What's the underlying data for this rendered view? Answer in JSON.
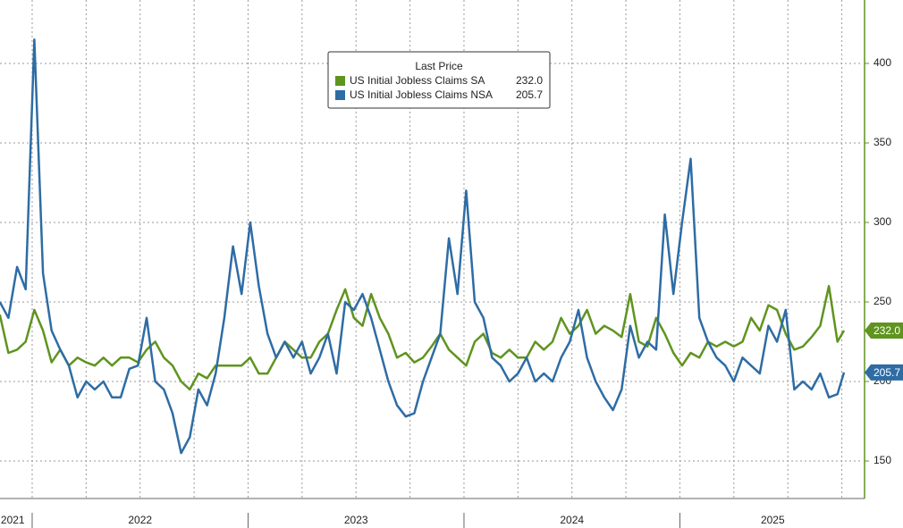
{
  "chart_data": {
    "type": "line",
    "legend_title": "Last Price",
    "legend_position": "top-center",
    "x": [
      2021.85,
      2021.89,
      2021.93,
      2021.97,
      2022.01,
      2022.05,
      2022.09,
      2022.13,
      2022.17,
      2022.21,
      2022.25,
      2022.29,
      2022.33,
      2022.37,
      2022.41,
      2022.45,
      2022.49,
      2022.53,
      2022.57,
      2022.61,
      2022.65,
      2022.69,
      2022.73,
      2022.77,
      2022.81,
      2022.85,
      2022.89,
      2022.93,
      2022.97,
      2023.01,
      2023.05,
      2023.09,
      2023.13,
      2023.17,
      2023.21,
      2023.25,
      2023.29,
      2023.33,
      2023.37,
      2023.41,
      2023.45,
      2023.49,
      2023.53,
      2023.57,
      2023.61,
      2023.65,
      2023.69,
      2023.73,
      2023.77,
      2023.81,
      2023.85,
      2023.89,
      2023.93,
      2023.97,
      2024.01,
      2024.05,
      2024.09,
      2024.13,
      2024.17,
      2024.21,
      2024.25,
      2024.29,
      2024.33,
      2024.37,
      2024.41,
      2024.45,
      2024.49,
      2024.53,
      2024.57,
      2024.61,
      2024.65,
      2024.69,
      2024.73,
      2024.77,
      2024.81,
      2024.85,
      2024.89,
      2024.93,
      2024.97,
      2025.01,
      2025.05,
      2025.09,
      2025.13,
      2025.17,
      2025.21,
      2025.25,
      2025.29,
      2025.33,
      2025.37,
      2025.41,
      2025.45,
      2025.49,
      2025.53,
      2025.57,
      2025.61,
      2025.65,
      2025.69,
      2025.73,
      2025.76
    ],
    "series": [
      {
        "name": "US Initial Jobless Claims SA",
        "last_label": "232.0",
        "color": "#5f941f",
        "values": [
          242,
          218,
          220,
          225,
          245,
          232,
          212,
          220,
          210,
          215,
          212,
          210,
          215,
          210,
          215,
          215,
          212,
          220,
          225,
          215,
          210,
          200,
          195,
          205,
          202,
          210,
          210,
          210,
          210,
          215,
          205,
          205,
          215,
          225,
          220,
          215,
          215,
          225,
          230,
          245,
          258,
          240,
          235,
          255,
          240,
          230,
          215,
          218,
          212,
          215,
          222,
          230,
          220,
          215,
          210,
          225,
          230,
          218,
          215,
          220,
          215,
          215,
          225,
          220,
          225,
          240,
          230,
          235,
          245,
          230,
          235,
          232,
          228,
          255,
          225,
          222,
          240,
          230,
          218,
          210,
          218,
          215,
          225,
          222,
          225,
          222,
          225,
          240,
          232,
          248,
          245,
          230,
          220,
          222,
          228,
          235,
          260,
          225,
          232
        ]
      },
      {
        "name": "US Initial Jobless Claims NSA",
        "last_label": "205.7",
        "color": "#2e6ca4",
        "values": [
          250,
          240,
          272,
          258,
          415,
          268,
          232,
          220,
          210,
          190,
          200,
          195,
          200,
          190,
          190,
          208,
          210,
          240,
          200,
          195,
          180,
          155,
          165,
          195,
          185,
          205,
          240,
          285,
          255,
          300,
          260,
          230,
          215,
          225,
          215,
          225,
          205,
          215,
          230,
          205,
          250,
          245,
          255,
          240,
          220,
          200,
          185,
          178,
          180,
          200,
          215,
          230,
          290,
          255,
          320,
          250,
          240,
          215,
          210,
          200,
          205,
          215,
          200,
          205,
          200,
          215,
          225,
          245,
          215,
          200,
          190,
          182,
          195,
          235,
          215,
          225,
          220,
          305,
          255,
          300,
          340,
          240,
          225,
          215,
          210,
          200,
          215,
          210,
          205,
          235,
          225,
          245,
          195,
          200,
          195,
          205,
          190,
          192,
          205.7
        ]
      }
    ],
    "xlim": [
      2021.851,
      2025.847
    ],
    "xticks": [
      {
        "value": 2021.91,
        "label": "2021"
      },
      {
        "value": 2022.5,
        "label": "2022"
      },
      {
        "value": 2023.5,
        "label": "2023"
      },
      {
        "value": 2024.5,
        "label": "2024"
      },
      {
        "value": 2025.43,
        "label": "2025"
      }
    ],
    "xgrid": [
      2022,
      2022.25,
      2022.5,
      2022.75,
      2023,
      2023.25,
      2023.5,
      2023.75,
      2024,
      2024.25,
      2024.5,
      2024.75,
      2025,
      2025.25,
      2025.5,
      2025.75
    ],
    "ylim": [
      126.4,
      439.9
    ],
    "yticks": [
      150,
      200,
      250,
      300,
      350,
      400
    ],
    "grid": true
  }
}
